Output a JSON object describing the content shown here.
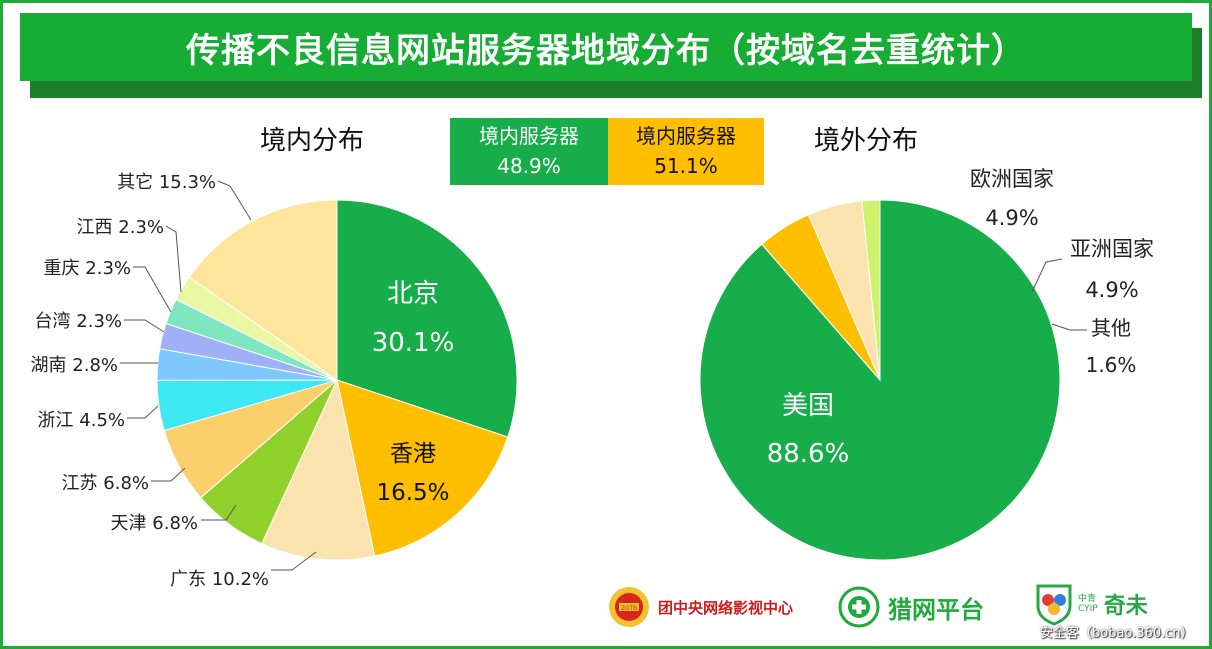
{
  "title": "传播不良信息网站服务器地域分布（按域名去重统计）",
  "legend": {
    "left": {
      "label": "境内服务器",
      "value": "48.9%",
      "color": "#17ad4a"
    },
    "right": {
      "label": "境内服务器",
      "value": "51.1%",
      "color": "#ffbf00"
    }
  },
  "chart_data": [
    {
      "type": "pie",
      "title": "境内分布",
      "labels": [
        "北京",
        "香港",
        "广东",
        "天津",
        "江苏",
        "浙江",
        "湖南",
        "台湾",
        "重庆",
        "江西",
        "其它"
      ],
      "values": [
        30.1,
        16.5,
        10.2,
        6.8,
        6.8,
        4.5,
        2.8,
        2.3,
        2.3,
        2.3,
        15.3
      ],
      "display": [
        "北京",
        "香港",
        "广东 10.2%",
        "天津 6.8%",
        "江苏 6.8%",
        "浙江 4.5%",
        "湖南 2.8%",
        "台湾 2.3%",
        "重庆 2.3%",
        "江西 2.3%",
        "其它 15.3%"
      ],
      "pct_labels": [
        "30.1%",
        "16.5%",
        "",
        "",
        "",
        "",
        "",
        "",
        "",
        "",
        ""
      ],
      "colors": [
        "#17ad4a",
        "#ffbf00",
        "#fbe3b0",
        "#8fd12a",
        "#fbcf6c",
        "#3ee8f2",
        "#7fc7ff",
        "#9fb0f7",
        "#7fe6c2",
        "#e9f7a2",
        "#fde59c"
      ]
    },
    {
      "type": "pie",
      "title": "境外分布",
      "labels": [
        "美国",
        "欧洲国家",
        "亚洲国家",
        "其他"
      ],
      "values": [
        88.6,
        4.9,
        4.9,
        1.6
      ],
      "pct_labels": [
        "88.6%",
        "4.9%",
        "4.9%",
        "1.6%"
      ],
      "colors": [
        "#17ad4a",
        "#ffbf00",
        "#fbe3b0",
        "#cdf26b"
      ]
    }
  ],
  "footer": {
    "logo1": "团中央网络影视中心",
    "logo2": "猎网平台",
    "logo3_top": "中青",
    "logo3_sub": "CYIP",
    "logo3": "奇未",
    "badge_text": "ZGTB"
  },
  "watermark": "安全客（bobao.360.cn）"
}
